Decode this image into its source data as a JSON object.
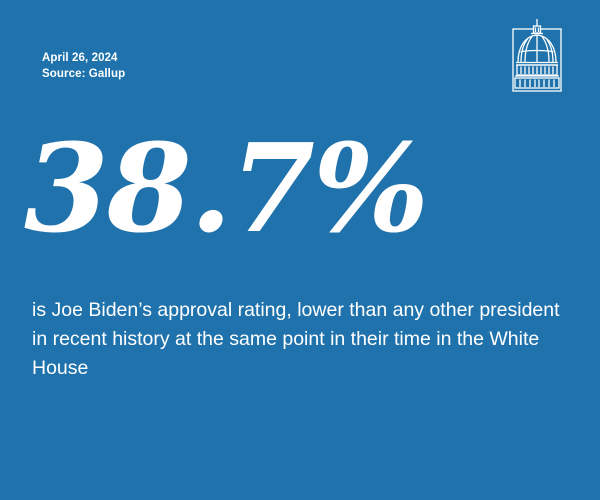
{
  "header": {
    "date": "April 26, 2024",
    "source": "Source: Gallup"
  },
  "logo": {
    "icon": "capitol-dome-icon",
    "color": "#ffffff"
  },
  "stat": {
    "value": "38.7%"
  },
  "description": "is Joe Biden’s approval rating, lower than any other president in recent history at the same point in their time in the White House",
  "colors": {
    "background": "#1f72ac",
    "text": "#ffffff"
  }
}
